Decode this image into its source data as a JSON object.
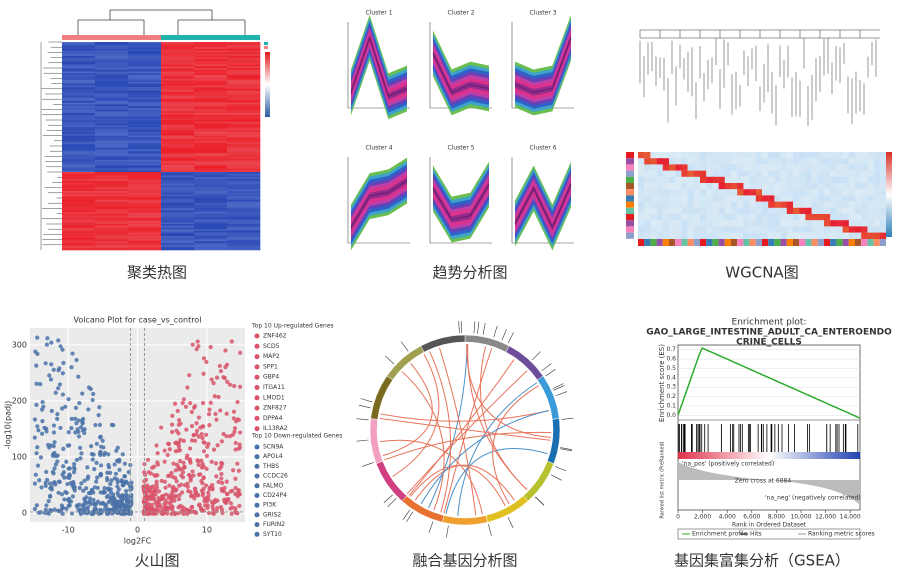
{
  "captions": [
    "聚类热图",
    "趋势分析图",
    "WGCNA图",
    "火山图",
    "融合基因分析图",
    "基因集富集分析（GSEA）"
  ],
  "trend": {
    "titles": [
      "Cluster 1",
      "Cluster 2",
      "Cluster 3",
      "Cluster 4",
      "Cluster 5",
      "Cluster 6"
    ]
  },
  "volcano": {
    "title": "Volcano Plot for case_vs_control",
    "xlabel": "log2FC",
    "ylabel": "-log10(padj)",
    "xlim": [
      -15.5,
      15.5
    ],
    "ylim": [
      -16,
      330
    ],
    "xticks": [
      -10,
      0,
      10
    ],
    "yticks": [
      0,
      100,
      200,
      300
    ],
    "up_title": "Top 10 Up-regulated Genes",
    "up_genes": [
      "ZNF462",
      "SCD5",
      "MAP2",
      "SPP1",
      "GBP4",
      "ITGA11",
      "LMOD1",
      "ZNF827",
      "DPPA4",
      "IL13RA2"
    ],
    "down_title": "Top 10 Down-regulated Genes",
    "down_genes": [
      "SCN9A",
      "APOL4",
      "THBS",
      "CCDC26",
      "FALMO",
      "CD24P4",
      "PI3K",
      "GRIS2",
      "FURIN2",
      "SYT10"
    ]
  },
  "gsea": {
    "title_lines": [
      "Enrichment plot:",
      "GAO_LARGE_INTESTINE_ADULT_CA_ENTEROENDO",
      "CRINE_CELLS"
    ],
    "ylabel": "Enrichment score (ES)",
    "ylabel2": "Ranked list metric (PreRanked)",
    "xlabel": "Rank in Ordered Dataset",
    "ylim": [
      -0.05,
      0.75
    ],
    "yticks": [
      {
        "value": 0,
        "label": "0.0"
      },
      0.1,
      0.2,
      0.3,
      0.4,
      0.5,
      0.6,
      0.7
    ],
    "xlim": [
      0,
      14800
    ],
    "xticks": [
      0,
      {
        "value": 2000,
        "label": "2,000"
      },
      {
        "value": 4000,
        "label": "4,000"
      },
      {
        "value": 6000,
        "label": "6,000"
      },
      {
        "value": 8000,
        "label": "8,000"
      },
      {
        "value": 10000,
        "label": "10,000"
      },
      {
        "value": 12000,
        "label": "12,000"
      },
      {
        "value": 14000,
        "label": "14,000"
      }
    ],
    "pos_label": "'na_pos' (positively correlated)",
    "neg_label": "'na_neg' (negatively correlated)",
    "zero_cross": "Zero cross at 6884",
    "legend": [
      "Enrichment profile",
      "Hits",
      "Ranking metric scores"
    ]
  }
}
